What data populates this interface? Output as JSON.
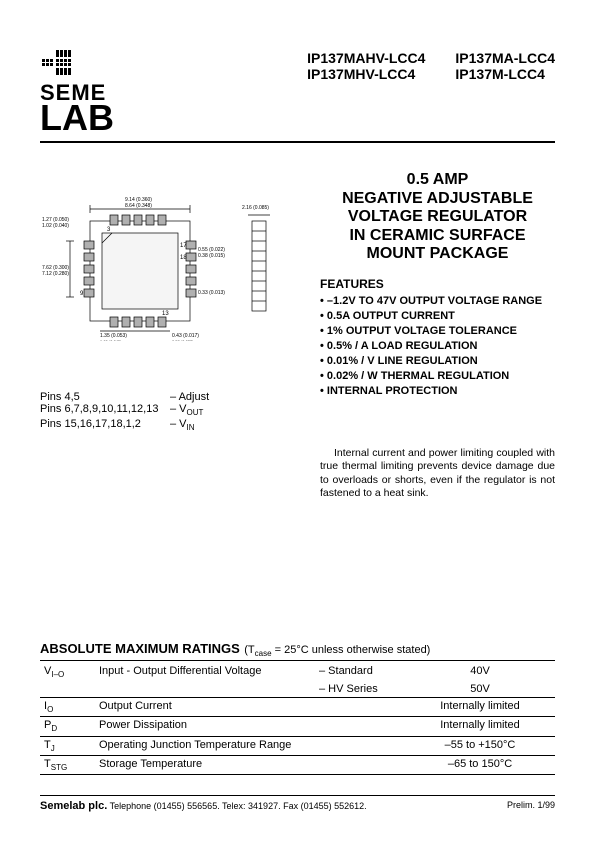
{
  "logo": {
    "line1": "SEME",
    "line2": "LAB"
  },
  "parts": {
    "col1": [
      "IP137MAHV-LCC4",
      "IP137MHV-LCC4"
    ],
    "col2": [
      "IP137MA-LCC4",
      "IP137M-LCC4"
    ]
  },
  "title": {
    "l1": "0.5 AMP",
    "l2": "NEGATIVE ADJUSTABLE",
    "l3": "VOLTAGE REGULATOR",
    "l4": "IN CERAMIC SURFACE",
    "l5": "MOUNT PACKAGE"
  },
  "features": {
    "heading": "FEATURES",
    "items": [
      "–1.2V TO 47V OUTPUT VOLTAGE RANGE",
      "0.5A OUTPUT CURRENT",
      "1% OUTPUT VOLTAGE TOLERANCE",
      "0.5% / A LOAD REGULATION",
      "0.01% / V LINE REGULATION",
      "0.02% / W THERMAL REGULATION",
      "INTERNAL PROTECTION"
    ]
  },
  "pins": {
    "r1": {
      "pins": "Pins 4,5",
      "fn": "– Adjust"
    },
    "r2": {
      "pins": "Pins 6,7,8,9,10,11,12,13",
      "fn_prefix": "– V",
      "fn_sub": "OUT"
    },
    "r3": {
      "pins": "Pins 15,16,17,18,1,2",
      "fn_prefix": "– V",
      "fn_sub": "IN"
    }
  },
  "body": "Internal current and power limiting coupled with true thermal limiting prevents device damage due to overloads or shorts, even if the regulator is not fastened to a heat sink.",
  "ratings": {
    "heading": "ABSOLUTE MAXIMUM RATINGS",
    "cond_prefix": " (T",
    "cond_sub": "case",
    "cond_rest": " = 25°C unless otherwise stated)",
    "rows": [
      {
        "sym": "V",
        "sub": "I–O",
        "desc": "Input - Output Differential Voltage",
        "variant": "– Standard",
        "val": "40V",
        "border": false
      },
      {
        "sym": "",
        "sub": "",
        "desc": "",
        "variant": "– HV Series",
        "val": "50V",
        "border": true
      },
      {
        "sym": "I",
        "sub": "O",
        "desc": "Output Current",
        "variant": "",
        "val": "Internally limited",
        "border": true
      },
      {
        "sym": "P",
        "sub": "D",
        "desc": "Power Dissipation",
        "variant": "",
        "val": "Internally limited",
        "border": true
      },
      {
        "sym": "T",
        "sub": "J",
        "desc": "Operating Junction Temperature Range",
        "variant": "",
        "val": "–55 to +150°C",
        "border": true
      },
      {
        "sym": "T",
        "sub": "STG",
        "desc": "Storage Temperature",
        "variant": "",
        "val": "–65 to 150°C",
        "border": true
      }
    ]
  },
  "footer": {
    "company": "Semelab plc.",
    "contact": "  Telephone (01455) 556565. Telex: 341927. Fax (01455) 552612.",
    "rev": "Prelim. 1/99"
  },
  "diagram": {
    "dims_top": [
      "9.14 (0.360)",
      "8.64 (0.348)"
    ],
    "dims_left": [
      "1.27 (0.050)",
      "1.02 (0.040)",
      "7.62 (0.300)",
      "7.12 (0.280)"
    ],
    "dims_r": [
      "2.16 (0.085)",
      "0.38 (0.022)",
      "0.28 (0.015)"
    ],
    "pin_nums": [
      "3",
      "17",
      "18",
      "13",
      "9"
    ],
    "colors": {
      "pad": "#b0b0b0",
      "stroke": "#000000"
    }
  }
}
